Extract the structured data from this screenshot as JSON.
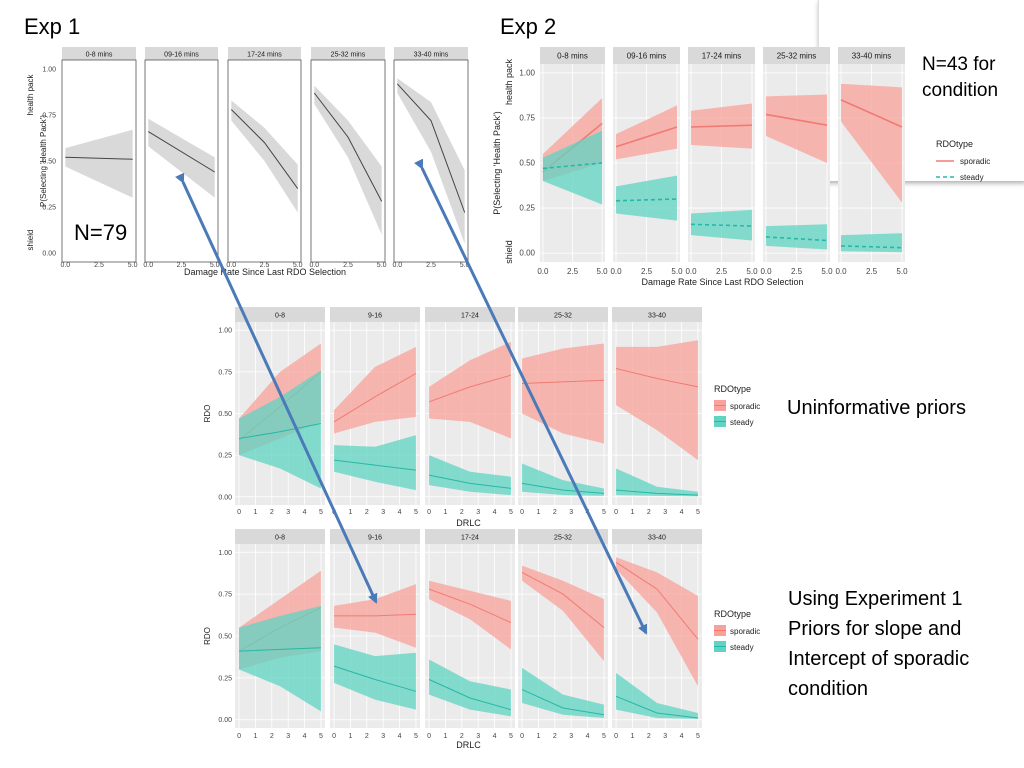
{
  "slide": {
    "exp1_title": "Exp 1",
    "exp2_title": "Exp 2",
    "n_exp1": "N=79",
    "n_exp2": "N=43 for\ncondition",
    "uninformative_label": "Uninformative priors",
    "exp1_priors_label": "Using Experiment 1\nPriors for slope and\nIntercept of sporadic\ncondition"
  },
  "colors": {
    "sporadic": "#f07b72",
    "sporadic_band": "#f9a19b",
    "steady": "#26b8a6",
    "steady_band": "#5fd4c3",
    "gray_line": "#444444",
    "gray_band": "#d9d9d9",
    "arrow": "#4a7ab8",
    "strip": "#d9d9d9",
    "panel_bg": "#ebebeb"
  },
  "chart_data": [
    {
      "id": "exp1",
      "type": "line",
      "panels": [
        "0-8 mins",
        "09-16 mins",
        "17-24 mins",
        "25-32 mins",
        "33-40 mins"
      ],
      "xlabel": "Damage Rate Since Last RDO Selection",
      "ylabel": "P(Selecting 'Health Pack')",
      "ylabel_top": "health pack",
      "ylabel_bottom": "shield",
      "xlim": [
        0,
        5
      ],
      "ylim": [
        0,
        1
      ],
      "xticks": [
        "0.0",
        "2.5",
        "5.0"
      ],
      "yticks": [
        "0.00",
        "0.25",
        "0.50",
        "0.75",
        "1.00"
      ],
      "legend": null,
      "series": [
        {
          "panels": [
            {
              "x": [
                0,
                5
              ],
              "y": [
                0.52,
                0.51
              ],
              "lo": [
                0.47,
                0.3
              ],
              "hi": [
                0.57,
                0.67
              ]
            },
            {
              "x": [
                0,
                5
              ],
              "y": [
                0.66,
                0.44
              ],
              "lo": [
                0.58,
                0.3
              ],
              "hi": [
                0.73,
                0.52
              ]
            },
            {
              "x": [
                0,
                2.5,
                5
              ],
              "y": [
                0.78,
                0.6,
                0.35
              ],
              "lo": [
                0.72,
                0.5,
                0.22
              ],
              "hi": [
                0.83,
                0.68,
                0.48
              ]
            },
            {
              "x": [
                0,
                2.5,
                5
              ],
              "y": [
                0.87,
                0.63,
                0.28
              ],
              "lo": [
                0.81,
                0.52,
                0.1
              ],
              "hi": [
                0.91,
                0.72,
                0.47
              ]
            },
            {
              "x": [
                0,
                2.5,
                5
              ],
              "y": [
                0.92,
                0.72,
                0.22
              ],
              "lo": [
                0.87,
                0.55,
                0.05
              ],
              "hi": [
                0.95,
                0.82,
                0.45
              ]
            }
          ]
        }
      ]
    },
    {
      "id": "exp2",
      "type": "line",
      "panels": [
        "0-8 mins",
        "09-16 mins",
        "17-24 mins",
        "25-32 mins",
        "33-40 mins"
      ],
      "xlabel": "Damage Rate Since Last RDO Selection",
      "ylabel": "P(Selecting 'Health Pack')",
      "ylabel_top": "health pack",
      "ylabel_bottom": "shield",
      "xlim": [
        0,
        5
      ],
      "ylim": [
        0,
        1
      ],
      "xticks": [
        "0.0",
        "2.5",
        "5.0"
      ],
      "yticks": [
        "0.00",
        "0.25",
        "0.50",
        "0.75",
        "1.00"
      ],
      "legend": {
        "title": "RDOtype",
        "entries": [
          "sporadic",
          "steady"
        ],
        "position": "right"
      },
      "series": [
        {
          "name": "sporadic",
          "panels": [
            {
              "x": [
                0,
                5
              ],
              "y": [
                0.45,
                0.72
              ],
              "lo": [
                0.4,
                0.5
              ],
              "hi": [
                0.55,
                0.86
              ]
            },
            {
              "x": [
                0,
                5
              ],
              "y": [
                0.59,
                0.7
              ],
              "lo": [
                0.52,
                0.58
              ],
              "hi": [
                0.66,
                0.82
              ]
            },
            {
              "x": [
                0,
                5
              ],
              "y": [
                0.7,
                0.71
              ],
              "lo": [
                0.6,
                0.58
              ],
              "hi": [
                0.79,
                0.83
              ]
            },
            {
              "x": [
                0,
                5
              ],
              "y": [
                0.77,
                0.71
              ],
              "lo": [
                0.65,
                0.5
              ],
              "hi": [
                0.87,
                0.88
              ]
            },
            {
              "x": [
                0,
                5
              ],
              "y": [
                0.85,
                0.7
              ],
              "lo": [
                0.73,
                0.28
              ],
              "hi": [
                0.94,
                0.92
              ]
            }
          ]
        },
        {
          "name": "steady",
          "panels": [
            {
              "x": [
                0,
                5
              ],
              "y": [
                0.47,
                0.5
              ],
              "lo": [
                0.4,
                0.27
              ],
              "hi": [
                0.53,
                0.68
              ]
            },
            {
              "x": [
                0,
                5
              ],
              "y": [
                0.29,
                0.3
              ],
              "lo": [
                0.22,
                0.18
              ],
              "hi": [
                0.37,
                0.43
              ]
            },
            {
              "x": [
                0,
                5
              ],
              "y": [
                0.16,
                0.15
              ],
              "lo": [
                0.1,
                0.07
              ],
              "hi": [
                0.22,
                0.24
              ]
            },
            {
              "x": [
                0,
                5
              ],
              "y": [
                0.09,
                0.07
              ],
              "lo": [
                0.04,
                0.02
              ],
              "hi": [
                0.15,
                0.16
              ]
            },
            {
              "x": [
                0,
                5
              ],
              "y": [
                0.04,
                0.03
              ],
              "lo": [
                0.01,
                0.005
              ],
              "hi": [
                0.1,
                0.11
              ]
            }
          ]
        }
      ]
    },
    {
      "id": "uninformative",
      "type": "line",
      "panels": [
        "0-8",
        "9-16",
        "17-24",
        "25-32",
        "33-40"
      ],
      "xlabel": "DRLC",
      "ylabel": "RDO",
      "xlim": [
        0,
        5
      ],
      "ylim": [
        0,
        1
      ],
      "xticks": [
        "0",
        "1",
        "2",
        "3",
        "4",
        "5"
      ],
      "yticks": [
        "0.00",
        "0.25",
        "0.50",
        "0.75",
        "1.00"
      ],
      "legend": {
        "title": "RDOtype",
        "entries": [
          "sporadic",
          "steady"
        ],
        "position": "right"
      },
      "series": [
        {
          "name": "sporadic",
          "panels": [
            {
              "x": [
                0,
                2.5,
                5
              ],
              "y": [
                0.34,
                0.54,
                0.75
              ],
              "lo": [
                0.25,
                0.35,
                0.45
              ],
              "hi": [
                0.47,
                0.75,
                0.92
              ]
            },
            {
              "x": [
                0,
                2.5,
                5
              ],
              "y": [
                0.45,
                0.6,
                0.74
              ],
              "lo": [
                0.38,
                0.45,
                0.48
              ],
              "hi": [
                0.52,
                0.78,
                0.9
              ]
            },
            {
              "x": [
                0,
                2.5,
                5
              ],
              "y": [
                0.57,
                0.66,
                0.73
              ],
              "lo": [
                0.47,
                0.45,
                0.35
              ],
              "hi": [
                0.66,
                0.82,
                0.93
              ]
            },
            {
              "x": [
                0,
                2.5,
                5
              ],
              "y": [
                0.68,
                0.69,
                0.7
              ],
              "lo": [
                0.5,
                0.38,
                0.32
              ],
              "hi": [
                0.83,
                0.89,
                0.92
              ]
            },
            {
              "x": [
                0,
                2.5,
                5
              ],
              "y": [
                0.77,
                0.71,
                0.66
              ],
              "lo": [
                0.55,
                0.4,
                0.22
              ],
              "hi": [
                0.9,
                0.9,
                0.94
              ]
            }
          ]
        },
        {
          "name": "steady",
          "panels": [
            {
              "x": [
                0,
                2.5,
                5
              ],
              "y": [
                0.35,
                0.39,
                0.44
              ],
              "lo": [
                0.25,
                0.17,
                0.05
              ],
              "hi": [
                0.47,
                0.6,
                0.76
              ]
            },
            {
              "x": [
                0,
                2.5,
                5
              ],
              "y": [
                0.22,
                0.19,
                0.16
              ],
              "lo": [
                0.15,
                0.09,
                0.04
              ],
              "hi": [
                0.31,
                0.3,
                0.37
              ]
            },
            {
              "x": [
                0,
                2.5,
                5
              ],
              "y": [
                0.13,
                0.08,
                0.05
              ],
              "lo": [
                0.07,
                0.03,
                0.01
              ],
              "hi": [
                0.25,
                0.15,
                0.12
              ]
            },
            {
              "x": [
                0,
                2.5,
                5
              ],
              "y": [
                0.08,
                0.04,
                0.02
              ],
              "lo": [
                0.03,
                0.01,
                0.005
              ],
              "hi": [
                0.2,
                0.1,
                0.05
              ]
            },
            {
              "x": [
                0,
                2.5,
                5
              ],
              "y": [
                0.04,
                0.02,
                0.01
              ],
              "lo": [
                0.01,
                0.005,
                0.002
              ],
              "hi": [
                0.17,
                0.06,
                0.03
              ]
            }
          ]
        }
      ]
    },
    {
      "id": "exp1_priors",
      "type": "line",
      "panels": [
        "0-8",
        "9-16",
        "17-24",
        "25-32",
        "33-40"
      ],
      "xlabel": "DRLC",
      "ylabel": "RDO",
      "xlim": [
        0,
        5
      ],
      "ylim": [
        0,
        1
      ],
      "xticks": [
        "0",
        "1",
        "2",
        "3",
        "4",
        "5"
      ],
      "yticks": [
        "0.00",
        "0.25",
        "0.50",
        "0.75",
        "1.00"
      ],
      "legend": {
        "title": "RDOtype",
        "entries": [
          "sporadic",
          "steady"
        ],
        "position": "right"
      },
      "series": [
        {
          "name": "sporadic",
          "panels": [
            {
              "x": [
                0,
                2.5,
                5
              ],
              "y": [
                0.41,
                0.55,
                0.67
              ],
              "lo": [
                0.3,
                0.37,
                0.41
              ],
              "hi": [
                0.55,
                0.72,
                0.89
              ]
            },
            {
              "x": [
                0,
                2.5,
                5
              ],
              "y": [
                0.62,
                0.62,
                0.63
              ],
              "lo": [
                0.55,
                0.52,
                0.43
              ],
              "hi": [
                0.68,
                0.72,
                0.81
              ]
            },
            {
              "x": [
                0,
                2.5,
                5
              ],
              "y": [
                0.78,
                0.69,
                0.58
              ],
              "lo": [
                0.72,
                0.6,
                0.42
              ],
              "hi": [
                0.83,
                0.77,
                0.71
              ]
            },
            {
              "x": [
                0,
                2.5,
                5
              ],
              "y": [
                0.88,
                0.75,
                0.55
              ],
              "lo": [
                0.83,
                0.65,
                0.35
              ],
              "hi": [
                0.92,
                0.83,
                0.72
              ]
            },
            {
              "x": [
                0,
                2.5,
                5
              ],
              "y": [
                0.94,
                0.78,
                0.48
              ],
              "lo": [
                0.9,
                0.64,
                0.2
              ],
              "hi": [
                0.97,
                0.88,
                0.74
              ]
            }
          ]
        },
        {
          "name": "steady",
          "panels": [
            {
              "x": [
                0,
                2.5,
                5
              ],
              "y": [
                0.41,
                0.42,
                0.43
              ],
              "lo": [
                0.3,
                0.2,
                0.05
              ],
              "hi": [
                0.55,
                0.62,
                0.68
              ]
            },
            {
              "x": [
                0,
                2.5,
                5
              ],
              "y": [
                0.32,
                0.24,
                0.17
              ],
              "lo": [
                0.22,
                0.12,
                0.06
              ],
              "hi": [
                0.45,
                0.38,
                0.4
              ]
            },
            {
              "x": [
                0,
                2.5,
                5
              ],
              "y": [
                0.24,
                0.13,
                0.06
              ],
              "lo": [
                0.15,
                0.06,
                0.02
              ],
              "hi": [
                0.36,
                0.23,
                0.18
              ]
            },
            {
              "x": [
                0,
                2.5,
                5
              ],
              "y": [
                0.18,
                0.07,
                0.03
              ],
              "lo": [
                0.1,
                0.03,
                0.01
              ],
              "hi": [
                0.31,
                0.15,
                0.09
              ]
            },
            {
              "x": [
                0,
                2.5,
                5
              ],
              "y": [
                0.14,
                0.04,
                0.01
              ],
              "lo": [
                0.06,
                0.01,
                0.005
              ],
              "hi": [
                0.28,
                0.1,
                0.04
              ]
            }
          ]
        }
      ]
    }
  ]
}
